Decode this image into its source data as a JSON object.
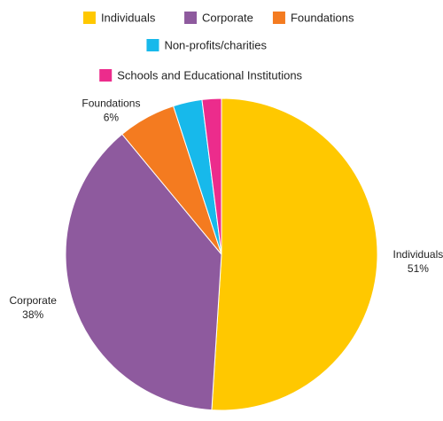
{
  "chart_data": {
    "type": "pie",
    "title": "",
    "slices": [
      {
        "label": "Individuals",
        "value": 51,
        "value_label": "51%",
        "color": "#FFC800"
      },
      {
        "label": "Corporate",
        "value": 38,
        "value_label": "38%",
        "color": "#8E5A9E"
      },
      {
        "label": "Foundations",
        "value": 6,
        "value_label": "6%",
        "color": "#F47B20"
      },
      {
        "label": "Non-profits/charities",
        "value": 3,
        "value_label": "",
        "color": "#17B9EB"
      },
      {
        "label": "Schools and Educational Institutions",
        "value": 2,
        "value_label": "",
        "color": "#EC2C8C"
      }
    ],
    "legend_position": "top",
    "start_angle": "12 o'clock",
    "direction": "clockwise"
  }
}
